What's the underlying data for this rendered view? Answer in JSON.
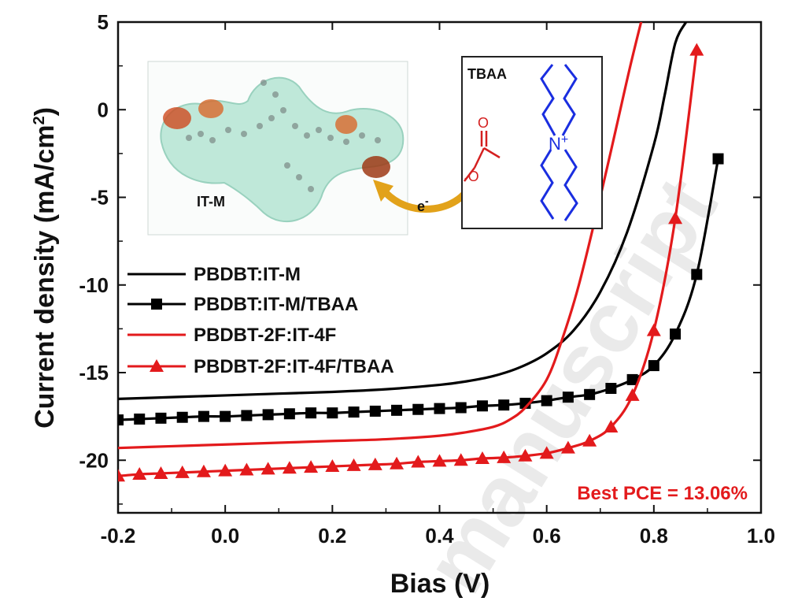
{
  "chart_data": {
    "type": "line",
    "xlabel": "Bias (V)",
    "ylabel": "Current density (mA/cm",
    "ylabel_sup": "2",
    "ylabel_close": ")",
    "xlim": [
      -0.2,
      1.0
    ],
    "ylim": [
      -23,
      5
    ],
    "xticks": [
      -0.2,
      0.0,
      0.2,
      0.4,
      0.6,
      0.8,
      1.0
    ],
    "xtick_labels": [
      "-0.2",
      "0.0",
      "0.2",
      "0.4",
      "0.6",
      "0.8",
      "1.0"
    ],
    "yticks": [
      -20,
      -15,
      -10,
      -5,
      0,
      5
    ],
    "ytick_labels": [
      "-20",
      "-15",
      "-10",
      "-5",
      "0",
      "5"
    ],
    "grid": false,
    "legend_placement": "left-middle",
    "series": [
      {
        "name": "PBDBT:IT-M",
        "color": "#000000",
        "marker": "none",
        "x": [
          -0.2,
          -0.1,
          0.0,
          0.1,
          0.2,
          0.3,
          0.4,
          0.45,
          0.5,
          0.55,
          0.6,
          0.65,
          0.7,
          0.75,
          0.8,
          0.82,
          0.84,
          0.86
        ],
        "y": [
          -16.5,
          -16.4,
          -16.3,
          -16.2,
          -16.1,
          -15.95,
          -15.7,
          -15.5,
          -15.2,
          -14.7,
          -13.9,
          -12.6,
          -10.4,
          -7.0,
          -2.0,
          0.8,
          3.8,
          5.0
        ]
      },
      {
        "name": "PBDBT:IT-M/TBAA",
        "color": "#000000",
        "marker": "square",
        "x": [
          -0.2,
          -0.16,
          -0.12,
          -0.08,
          -0.04,
          0.0,
          0.04,
          0.08,
          0.12,
          0.16,
          0.2,
          0.24,
          0.28,
          0.32,
          0.36,
          0.4,
          0.44,
          0.48,
          0.52,
          0.56,
          0.6,
          0.64,
          0.68,
          0.72,
          0.76,
          0.8,
          0.84,
          0.88,
          0.92
        ],
        "y": [
          -17.7,
          -17.65,
          -17.6,
          -17.55,
          -17.5,
          -17.5,
          -17.45,
          -17.4,
          -17.35,
          -17.3,
          -17.3,
          -17.25,
          -17.2,
          -17.15,
          -17.1,
          -17.05,
          -17.0,
          -16.9,
          -16.85,
          -16.75,
          -16.6,
          -16.4,
          -16.25,
          -15.9,
          -15.4,
          -14.6,
          -12.8,
          -9.4,
          -2.8
        ]
      },
      {
        "name": "PBDBT-2F:IT-4F",
        "color": "#e31a1c",
        "marker": "none",
        "x": [
          -0.2,
          -0.1,
          0.0,
          0.1,
          0.2,
          0.3,
          0.4,
          0.45,
          0.5,
          0.53,
          0.56,
          0.6,
          0.63,
          0.66,
          0.7,
          0.73,
          0.76,
          0.79,
          0.81
        ],
        "y": [
          -19.3,
          -19.2,
          -19.1,
          -19.0,
          -18.9,
          -18.8,
          -18.6,
          -18.4,
          -18.1,
          -17.7,
          -17.0,
          -15.4,
          -13.0,
          -10.0,
          -5.0,
          -1.0,
          3.0,
          6.5,
          7.5
        ]
      },
      {
        "name": "PBDBT-2F:IT-4F/TBAA",
        "color": "#e31a1c",
        "marker": "triangle",
        "x": [
          -0.2,
          -0.16,
          -0.12,
          -0.08,
          -0.04,
          0.0,
          0.04,
          0.08,
          0.12,
          0.16,
          0.2,
          0.24,
          0.28,
          0.32,
          0.36,
          0.4,
          0.44,
          0.48,
          0.52,
          0.56,
          0.6,
          0.64,
          0.68,
          0.72,
          0.76,
          0.8,
          0.84,
          0.88
        ],
        "y": [
          -20.9,
          -20.8,
          -20.75,
          -20.7,
          -20.65,
          -20.6,
          -20.55,
          -20.5,
          -20.45,
          -20.4,
          -20.35,
          -20.3,
          -20.25,
          -20.2,
          -20.1,
          -20.05,
          -20.0,
          -19.9,
          -19.85,
          -19.75,
          -19.6,
          -19.3,
          -18.9,
          -18.1,
          -16.3,
          -12.6,
          -6.2,
          3.4
        ]
      }
    ],
    "annotations": {
      "best_pce": "Best PCE = 13.06%",
      "best_pce_color": "#e31a1c"
    }
  },
  "inset": {
    "molecule_label": "IT-M",
    "electron_label": "e",
    "electron_sup": "-",
    "additive_label": "TBAA",
    "nitrogen_label": "N",
    "nitrogen_charge": "+",
    "oxygen_label": "O",
    "oxygen_minus_label": "O",
    "oxygen_minus_sign": "-"
  },
  "watermark": "manuscript"
}
